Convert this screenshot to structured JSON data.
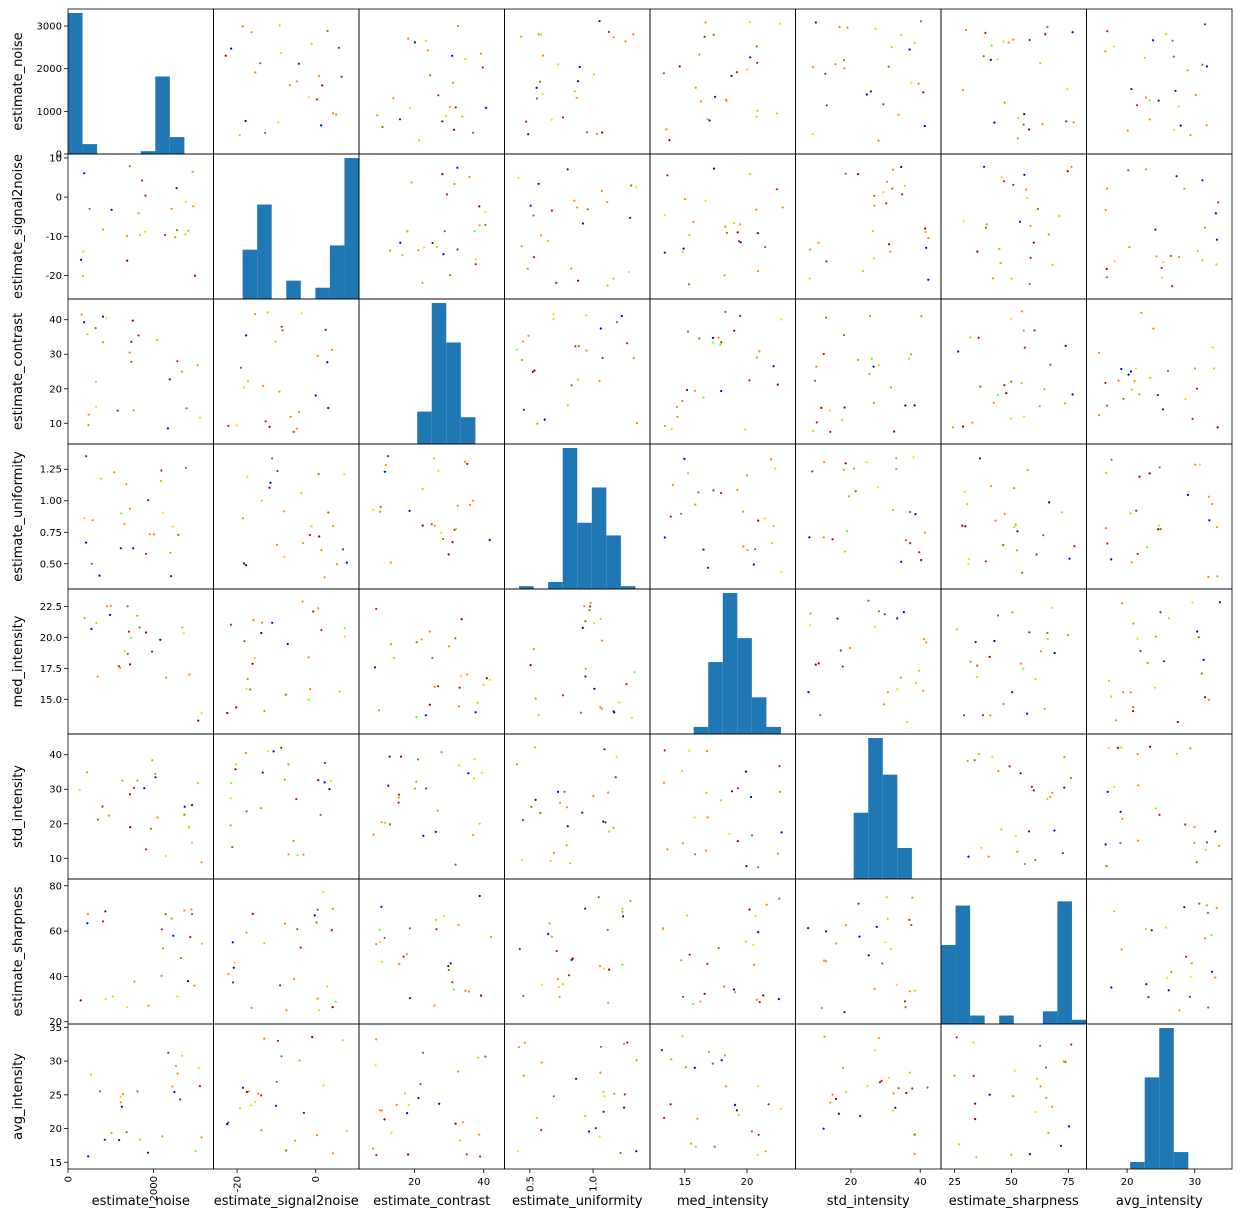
{
  "chart_data": {
    "type": "scatter-matrix",
    "variables": [
      {
        "name": "estimate_noise",
        "range": [
          0,
          3400
        ],
        "ticks": [
          0,
          1000,
          2000,
          3000
        ],
        "xticks": [
          0,
          2000
        ],
        "rotate_xticks": true
      },
      {
        "name": "estimate_signal2noise",
        "range": [
          -26,
          11
        ],
        "ticks": [
          -20,
          -10,
          0,
          10
        ],
        "xticks": [
          -20,
          0
        ],
        "rotate_xticks": true
      },
      {
        "name": "estimate_contrast",
        "range": [
          4,
          46
        ],
        "ticks": [
          10,
          20,
          30,
          40
        ],
        "xticks": [
          20,
          40
        ],
        "rotate_xticks": false
      },
      {
        "name": "estimate_uniformity",
        "range": [
          0.3,
          1.45
        ],
        "ticks": [
          0.5,
          0.75,
          1.0,
          1.25
        ],
        "tick_labels": [
          "0.50",
          "0.75",
          "1.00",
          "1.25"
        ],
        "xticks": [
          0.5,
          1.0
        ],
        "xtick_labels": [
          "0.5",
          "1.0"
        ],
        "rotate_xticks": true
      },
      {
        "name": "med_intensity",
        "range": [
          12.2,
          23.9
        ],
        "ticks": [
          15.0,
          17.5,
          20.0,
          22.5
        ],
        "tick_labels": [
          "15.0",
          "17.5",
          "20.0",
          "22.5"
        ],
        "xticks": [
          15,
          20
        ],
        "rotate_xticks": false
      },
      {
        "name": "std_intensity",
        "range": [
          4,
          46
        ],
        "ticks": [
          10,
          20,
          30,
          40
        ],
        "xticks": [
          20,
          40
        ],
        "rotate_xticks": false
      },
      {
        "name": "estimate_sharpness",
        "range": [
          19,
          83
        ],
        "ticks": [
          20,
          40,
          60,
          80
        ],
        "xticks": [
          25,
          50,
          75
        ],
        "rotate_xticks": false
      },
      {
        "name": "avg_intensity",
        "range": [
          14,
          35.5
        ],
        "ticks": [
          15,
          20,
          25,
          30,
          35
        ],
        "xticks": [
          20,
          30
        ],
        "rotate_xticks": false
      }
    ],
    "diagonal": "histogram",
    "histograms": [
      [
        1.0,
        0.07,
        0.0,
        0.0,
        0.0,
        0.02,
        0.55,
        0.12,
        0.0,
        0.0
      ],
      [
        0.0,
        0.0,
        0.35,
        0.67,
        0.0,
        0.13,
        0.0,
        0.08,
        0.38,
        1.0
      ],
      [
        0.0,
        0.0,
        0.0,
        0.0,
        0.23,
        1.0,
        0.72,
        0.19,
        0.0,
        0.0
      ],
      [
        0.0,
        0.02,
        0.0,
        0.05,
        1.0,
        0.47,
        0.72,
        0.38,
        0.02,
        0.0
      ],
      [
        0.0,
        0.0,
        0.0,
        0.05,
        0.51,
        1.0,
        0.68,
        0.26,
        0.05,
        0.0
      ],
      [
        0.0,
        0.0,
        0.0,
        0.0,
        0.47,
        1.0,
        0.74,
        0.22,
        0.0,
        0.0
      ],
      [
        0.56,
        0.84,
        0.06,
        0.0,
        0.06,
        0.0,
        0.0,
        0.09,
        0.87,
        0.03
      ],
      [
        0.0,
        0.0,
        0.0,
        0.05,
        0.65,
        1.0,
        0.12,
        0.0,
        0.0,
        0.0
      ]
    ],
    "palette": [
      "#ff8c00",
      "#ff8c00",
      "#b22222",
      "#8b0000",
      "#7cfc00",
      "#ffd700",
      "#0000cd",
      "#808000"
    ],
    "bar_color": "#1f77b4",
    "grid": false,
    "legend": "none"
  }
}
